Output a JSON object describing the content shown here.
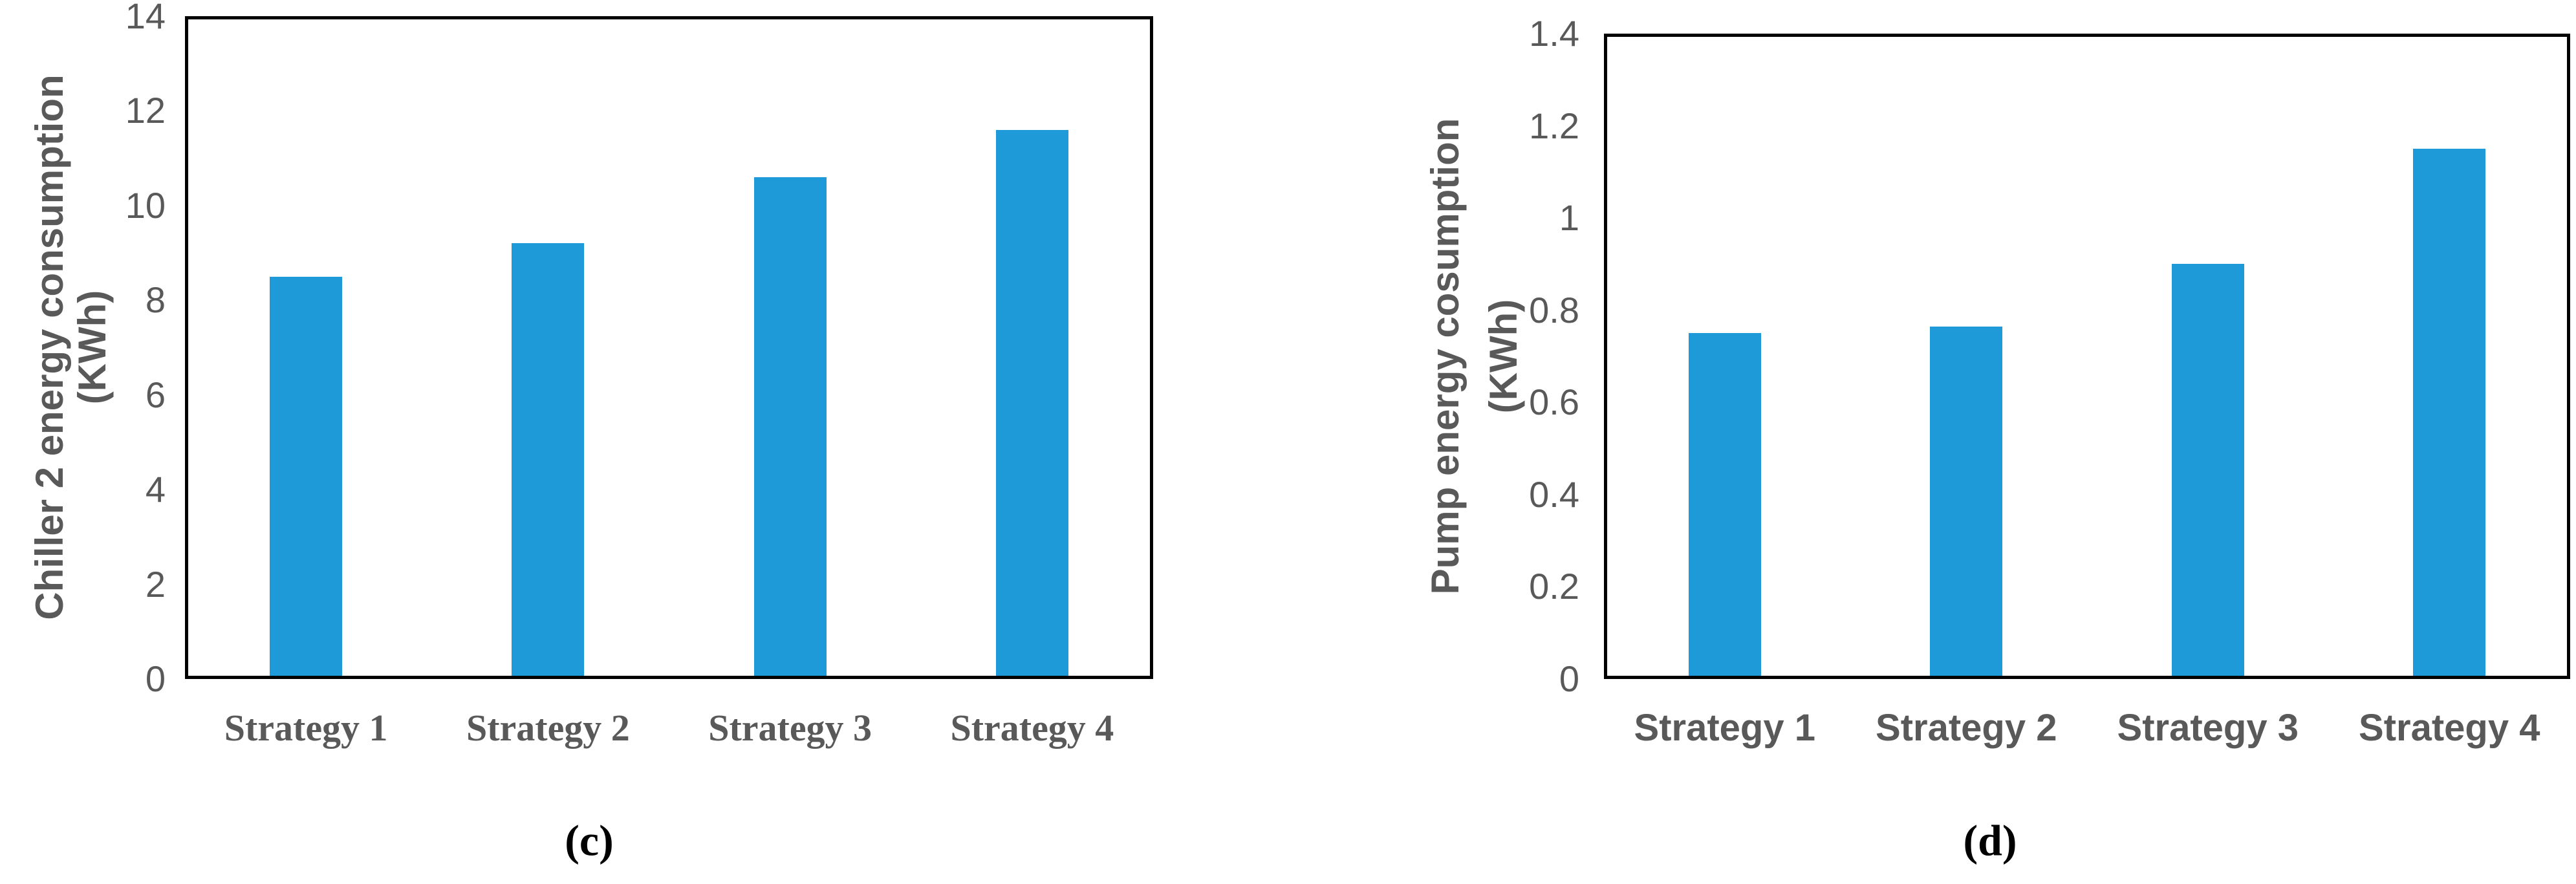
{
  "figure": {
    "background": "#FFFFFF",
    "panels": [
      {
        "id": "c",
        "caption": "(c)"
      },
      {
        "id": "d",
        "caption": "(d)"
      }
    ]
  },
  "colors": {
    "bar_blue": "#1F9AD8",
    "text_gray": "#595959",
    "axis_black": "#000000",
    "background": "#FFFFFF"
  },
  "chart_data": [
    {
      "type": "bar",
      "title": "",
      "xlabel": "",
      "ylabel": "Chiller 2 energy consumption (KWh)",
      "ylabel_lines": [
        "Chiller 2 energy consumption",
        "(KWh)"
      ],
      "categories": [
        "Strategy 1",
        "Strategy 2",
        "Strategy 3",
        "Strategy 4"
      ],
      "values": [
        8.5,
        9.2,
        10.6,
        11.6
      ],
      "ylim": [
        0,
        14
      ],
      "yticks": [
        0,
        2,
        4,
        6,
        8,
        10,
        12,
        14
      ],
      "ytick_labels": [
        "0",
        "2",
        "4",
        "6",
        "8",
        "10",
        "12",
        "14"
      ],
      "grid": false,
      "legend": null,
      "bar_color": "#1F9AD8",
      "caption": "(c)"
    },
    {
      "type": "bar",
      "title": "",
      "xlabel": "",
      "ylabel": "Pump energy cosumption (KWh)",
      "ylabel_lines": [
        "Pump energy cosumption",
        "(KWh)"
      ],
      "categories": [
        "Strategy 1",
        "Strategy 2",
        "Strategy 3",
        "Strategy 4"
      ],
      "values": [
        0.75,
        0.765,
        0.9,
        1.15
      ],
      "ylim": [
        0,
        1.4
      ],
      "yticks": [
        0,
        0.2,
        0.4,
        0.6,
        0.8,
        1,
        1.2,
        1.4
      ],
      "ytick_labels": [
        "0",
        "0.2",
        "0.4",
        "0.6",
        "0.8",
        "1",
        "1.2",
        "1.4"
      ],
      "grid": false,
      "legend": null,
      "bar_color": "#1F9AD8",
      "caption": "(d)"
    }
  ]
}
